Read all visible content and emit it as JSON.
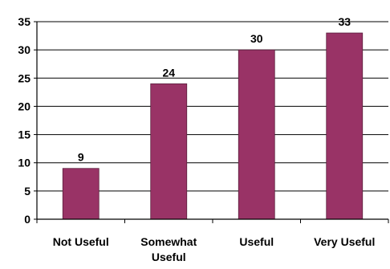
{
  "chart_data": {
    "type": "bar",
    "categories": [
      "Not Useful",
      "Somewhat Useful",
      "Useful",
      "Very Useful"
    ],
    "category_lines": [
      [
        "Not Useful"
      ],
      [
        "Somewhat",
        "Useful"
      ],
      [
        "Useful"
      ],
      [
        "Very Useful"
      ]
    ],
    "values": [
      9,
      24,
      30,
      33
    ],
    "data_labels": [
      "9",
      "24",
      "30",
      "33"
    ],
    "ylim": [
      0,
      35
    ],
    "yticks": [
      0,
      5,
      10,
      15,
      20,
      25,
      30,
      35
    ],
    "title": "",
    "xlabel": "",
    "ylabel": "",
    "grid": true,
    "bar_color": "#993366",
    "grid_color": "#000000"
  }
}
